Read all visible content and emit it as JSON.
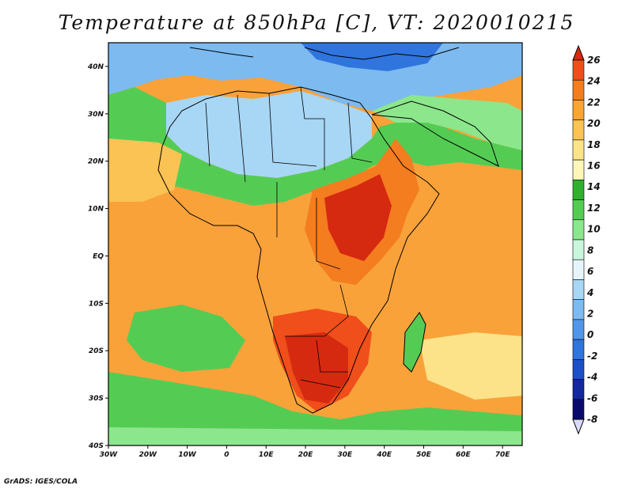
{
  "title": "Temperature at 850hPa [C], VT: 2020010215",
  "credit": "GrADS: IGES/COLA",
  "map": {
    "region": "Africa",
    "lon_range": [
      -30,
      75
    ],
    "lat_range": [
      -40,
      45
    ],
    "lat_ticks": [
      "40N",
      "30N",
      "20N",
      "10N",
      "EQ",
      "10S",
      "20S",
      "30S",
      "40S"
    ],
    "lon_ticks": [
      "30W",
      "20W",
      "10W",
      "0",
      "10E",
      "20E",
      "30E",
      "40E",
      "50E",
      "60E",
      "70E"
    ]
  },
  "colorbar": {
    "labels": [
      "26",
      "24",
      "22",
      "20",
      "18",
      "16",
      "14",
      "12",
      "10",
      "8",
      "6",
      "4",
      "2",
      "0",
      "-2",
      "-4",
      "-6",
      "-8"
    ],
    "colors": [
      "#d62a10",
      "#f04e1a",
      "#f47d20",
      "#f8a532",
      "#fac354",
      "#fce38a",
      "#fdf6b8",
      "#2fb02f",
      "#54cc54",
      "#8ce68c",
      "#c9f6dc",
      "#e6f4fb",
      "#a8d6f5",
      "#7cbaf0",
      "#5396e9",
      "#3074dd",
      "#1c4fc8",
      "#15299e",
      "#0b0b6e",
      "#d9dbf9"
    ]
  }
}
